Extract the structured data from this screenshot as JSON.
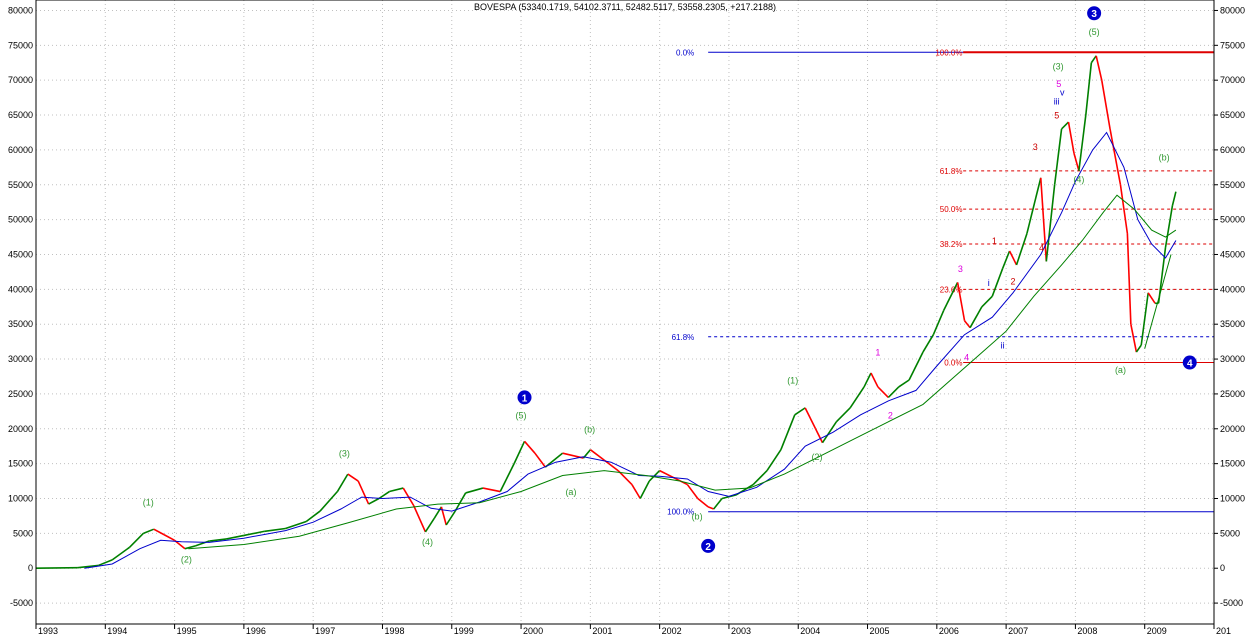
{
  "chart_data": {
    "type": "line",
    "title": "BOVESPA (53340.1719, 54102.3711, 52482.5117, 53558.2305, +217.2188)",
    "xlabel": "",
    "ylabel": "",
    "xlim": [
      1993.0,
      2010.0
    ],
    "ylim": [
      -8000,
      81500
    ],
    "y_ticks": [
      -5000,
      0,
      5000,
      10000,
      15000,
      20000,
      25000,
      30000,
      35000,
      40000,
      45000,
      50000,
      55000,
      60000,
      65000,
      70000,
      75000,
      80000
    ],
    "x_tick_labels": [
      "1993",
      "1994",
      "1995",
      "1996",
      "1997",
      "1998",
      "1999",
      "2000",
      "2001",
      "2002",
      "2003",
      "2004",
      "2005",
      "2006",
      "2007",
      "2008",
      "2009",
      "201"
    ],
    "grid": true,
    "colors": {
      "price_up": "#008000",
      "price_down": "#ff0000",
      "ma_short": "#0000cc",
      "ma_long": "#008000",
      "fib_major": "#0000cc",
      "fib_minor": "#dd0000",
      "wave_green": "#339933",
      "wave_magenta": "#dd00dd",
      "wave_red": "#cc0000",
      "wave_blue": "#0000cc",
      "grid": "#c0c0c0"
    },
    "series": [
      {
        "role": "price",
        "values": [
          [
            1993.0,
            0
          ],
          [
            1993.6,
            80
          ],
          [
            1993.9,
            400
          ],
          [
            1994.1,
            1200
          ],
          [
            1994.35,
            3000
          ],
          [
            1994.55,
            5000
          ],
          [
            1994.7,
            5600
          ],
          [
            1994.85,
            4800
          ],
          [
            1995.0,
            4000
          ],
          [
            1995.15,
            2800
          ],
          [
            1995.3,
            3200
          ],
          [
            1995.5,
            3900
          ],
          [
            1995.75,
            4200
          ],
          [
            1996.0,
            4700
          ],
          [
            1996.3,
            5300
          ],
          [
            1996.6,
            5700
          ],
          [
            1996.9,
            6700
          ],
          [
            1997.1,
            8200
          ],
          [
            1997.35,
            11000
          ],
          [
            1997.5,
            13500
          ],
          [
            1997.65,
            12500
          ],
          [
            1997.8,
            9200
          ],
          [
            1997.95,
            10000
          ],
          [
            1998.1,
            11000
          ],
          [
            1998.3,
            11500
          ],
          [
            1998.45,
            9000
          ],
          [
            1998.62,
            5200
          ],
          [
            1998.75,
            7200
          ],
          [
            1998.85,
            8800
          ],
          [
            1998.92,
            6200
          ],
          [
            1999.05,
            8200
          ],
          [
            1999.2,
            10800
          ],
          [
            1999.45,
            11500
          ],
          [
            1999.7,
            11000
          ],
          [
            1999.9,
            15000
          ],
          [
            2000.05,
            18200
          ],
          [
            2000.2,
            16500
          ],
          [
            2000.35,
            14500
          ],
          [
            2000.6,
            16500
          ],
          [
            2000.9,
            15800
          ],
          [
            2001.0,
            17000
          ],
          [
            2001.2,
            15500
          ],
          [
            2001.4,
            14000
          ],
          [
            2001.6,
            12000
          ],
          [
            2001.72,
            10000
          ],
          [
            2001.85,
            12500
          ],
          [
            2002.0,
            14000
          ],
          [
            2002.2,
            13000
          ],
          [
            2002.4,
            12000
          ],
          [
            2002.55,
            10000
          ],
          [
            2002.7,
            8800
          ],
          [
            2002.78,
            8500
          ],
          [
            2002.9,
            10000
          ],
          [
            2003.1,
            10500
          ],
          [
            2003.35,
            12000
          ],
          [
            2003.55,
            14000
          ],
          [
            2003.75,
            17000
          ],
          [
            2003.95,
            22000
          ],
          [
            2004.1,
            23000
          ],
          [
            2004.25,
            20000
          ],
          [
            2004.35,
            18000
          ],
          [
            2004.55,
            21000
          ],
          [
            2004.75,
            23000
          ],
          [
            2004.95,
            26000
          ],
          [
            2005.05,
            28000
          ],
          [
            2005.15,
            26000
          ],
          [
            2005.3,
            24500
          ],
          [
            2005.45,
            26000
          ],
          [
            2005.6,
            27000
          ],
          [
            2005.8,
            31000
          ],
          [
            2005.95,
            33500
          ],
          [
            2006.1,
            37000
          ],
          [
            2006.3,
            41000
          ],
          [
            2006.4,
            35500
          ],
          [
            2006.48,
            34500
          ],
          [
            2006.65,
            37500
          ],
          [
            2006.8,
            39000
          ],
          [
            2006.95,
            43000
          ],
          [
            2007.05,
            45500
          ],
          [
            2007.15,
            43500
          ],
          [
            2007.3,
            48000
          ],
          [
            2007.5,
            56000
          ],
          [
            2007.58,
            44000
          ],
          [
            2007.7,
            55000
          ],
          [
            2007.8,
            63000
          ],
          [
            2007.9,
            64000
          ],
          [
            2007.98,
            59500
          ],
          [
            2008.05,
            57000
          ],
          [
            2008.15,
            65000
          ],
          [
            2008.23,
            72500
          ],
          [
            2008.3,
            73500
          ],
          [
            2008.38,
            70000
          ],
          [
            2008.5,
            63000
          ],
          [
            2008.65,
            55000
          ],
          [
            2008.75,
            48000
          ],
          [
            2008.8,
            35000
          ],
          [
            2008.88,
            31000
          ],
          [
            2008.95,
            32000
          ],
          [
            2009.05,
            39500
          ],
          [
            2009.15,
            38000
          ],
          [
            2009.2,
            38000
          ],
          [
            2009.3,
            46000
          ],
          [
            2009.4,
            52000
          ],
          [
            2009.45,
            54000
          ]
        ]
      },
      {
        "role": "moving-average-short",
        "values": [
          [
            1993.7,
            0
          ],
          [
            1994.1,
            600
          ],
          [
            1994.5,
            2800
          ],
          [
            1994.8,
            4000
          ],
          [
            1995.1,
            3800
          ],
          [
            1995.5,
            3700
          ],
          [
            1996.0,
            4300
          ],
          [
            1996.6,
            5400
          ],
          [
            1997.0,
            6600
          ],
          [
            1997.4,
            8500
          ],
          [
            1997.7,
            10200
          ],
          [
            1998.0,
            10000
          ],
          [
            1998.4,
            10200
          ],
          [
            1998.7,
            8600
          ],
          [
            1999.0,
            8200
          ],
          [
            1999.4,
            9500
          ],
          [
            1999.8,
            11000
          ],
          [
            2000.1,
            13500
          ],
          [
            2000.5,
            15200
          ],
          [
            2000.9,
            16000
          ],
          [
            2001.3,
            15200
          ],
          [
            2001.7,
            13300
          ],
          [
            2002.0,
            13200
          ],
          [
            2002.4,
            12800
          ],
          [
            2002.7,
            11000
          ],
          [
            2003.0,
            10300
          ],
          [
            2003.4,
            11600
          ],
          [
            2003.8,
            14200
          ],
          [
            2004.1,
            17500
          ],
          [
            2004.5,
            19500
          ],
          [
            2004.9,
            22000
          ],
          [
            2005.3,
            24000
          ],
          [
            2005.7,
            25500
          ],
          [
            2006.0,
            29000
          ],
          [
            2006.4,
            33500
          ],
          [
            2006.8,
            36000
          ],
          [
            2007.1,
            39500
          ],
          [
            2007.5,
            45000
          ],
          [
            2007.8,
            51000
          ],
          [
            2008.0,
            55500
          ],
          [
            2008.25,
            60000
          ],
          [
            2008.45,
            62500
          ],
          [
            2008.7,
            57500
          ],
          [
            2008.9,
            50000
          ],
          [
            2009.1,
            46500
          ],
          [
            2009.3,
            44500
          ],
          [
            2009.45,
            47000
          ]
        ]
      },
      {
        "role": "moving-average-long",
        "values": [
          [
            1995.2,
            2800
          ],
          [
            1996.0,
            3400
          ],
          [
            1996.8,
            4600
          ],
          [
            1997.5,
            6500
          ],
          [
            1998.2,
            8500
          ],
          [
            1998.8,
            9200
          ],
          [
            1999.4,
            9400
          ],
          [
            2000.0,
            11000
          ],
          [
            2000.6,
            13300
          ],
          [
            2001.2,
            14000
          ],
          [
            2001.8,
            13300
          ],
          [
            2002.3,
            12500
          ],
          [
            2002.8,
            11200
          ],
          [
            2003.3,
            11500
          ],
          [
            2003.8,
            13500
          ],
          [
            2004.3,
            16000
          ],
          [
            2004.8,
            18500
          ],
          [
            2005.3,
            21000
          ],
          [
            2005.8,
            23500
          ],
          [
            2006.2,
            27000
          ],
          [
            2006.6,
            30500
          ],
          [
            2007.0,
            34000
          ],
          [
            2007.4,
            39000
          ],
          [
            2007.8,
            43500
          ],
          [
            2008.1,
            47000
          ],
          [
            2008.4,
            51000
          ],
          [
            2008.6,
            53500
          ],
          [
            2008.85,
            51500
          ],
          [
            2009.1,
            48500
          ],
          [
            2009.3,
            47500
          ],
          [
            2009.45,
            48500
          ]
        ]
      },
      {
        "role": "trend-channel-2009",
        "values": [
          [
            2009.0,
            31500
          ],
          [
            2009.38,
            45000
          ]
        ]
      }
    ],
    "fib_major": {
      "color": "#0000cc",
      "levels": [
        {
          "pct": "0.0%",
          "value": 74000
        },
        {
          "pct": "61.8%",
          "value": 33200
        },
        {
          "pct": "100.0%",
          "value": 8100
        }
      ]
    },
    "fib_minor": {
      "color": "#dd0000",
      "levels": [
        {
          "pct": "100.0%",
          "value": 74000
        },
        {
          "pct": "61.8%",
          "value": 57000
        },
        {
          "pct": "50.0%",
          "value": 51500
        },
        {
          "pct": "38.2%",
          "value": 46500
        },
        {
          "pct": "23.6%",
          "value": 40000
        },
        {
          "pct": "0.0%",
          "value": 29500
        }
      ]
    },
    "wave_labels": [
      {
        "text": "(1)",
        "x": 1994.62,
        "y": 9000,
        "color": "#339933"
      },
      {
        "text": "(2)",
        "x": 1995.17,
        "y": 800,
        "color": "#339933"
      },
      {
        "text": "(3)",
        "x": 1997.45,
        "y": 16000,
        "color": "#339933"
      },
      {
        "text": "(4)",
        "x": 1998.65,
        "y": 3300,
        "color": "#339933"
      },
      {
        "text": "(5)",
        "x": 2000.0,
        "y": 21500,
        "color": "#339933"
      },
      {
        "text": "(b)",
        "x": 2000.99,
        "y": 19500,
        "color": "#339933"
      },
      {
        "text": "(a)",
        "x": 2000.72,
        "y": 10500,
        "color": "#339933"
      },
      {
        "text": "(b)",
        "x": 2002.54,
        "y": 7000,
        "color": "#339933"
      },
      {
        "text": "(1)",
        "x": 2003.92,
        "y": 26500,
        "color": "#339933"
      },
      {
        "text": "(2)",
        "x": 2004.27,
        "y": 15500,
        "color": "#339933"
      },
      {
        "text": "(3)",
        "x": 2007.75,
        "y": 71500,
        "color": "#339933"
      },
      {
        "text": "(4)",
        "x": 2008.05,
        "y": 55300,
        "color": "#339933"
      },
      {
        "text": "(5)",
        "x": 2008.27,
        "y": 76500,
        "color": "#339933"
      },
      {
        "text": "(b)",
        "x": 2009.28,
        "y": 58500,
        "color": "#339933"
      },
      {
        "text": "(a)",
        "x": 2008.65,
        "y": 28000,
        "color": "#339933"
      },
      {
        "text": "1",
        "x": 2005.15,
        "y": 30500,
        "color": "#dd00dd"
      },
      {
        "text": "2",
        "x": 2005.33,
        "y": 21500,
        "color": "#dd00dd"
      },
      {
        "text": "3",
        "x": 2006.34,
        "y": 42500,
        "color": "#dd00dd"
      },
      {
        "text": "4",
        "x": 2006.43,
        "y": 29800,
        "color": "#dd00dd"
      },
      {
        "text": "5",
        "x": 2007.76,
        "y": 69000,
        "color": "#dd00dd"
      },
      {
        "text": "i",
        "x": 2006.75,
        "y": 40500,
        "color": "#0000cc"
      },
      {
        "text": "ii",
        "x": 2006.95,
        "y": 31500,
        "color": "#0000cc"
      },
      {
        "text": "iii",
        "x": 2007.73,
        "y": 66500,
        "color": "#0000cc"
      },
      {
        "text": "v",
        "x": 2007.81,
        "y": 67800,
        "color": "#0000cc"
      },
      {
        "text": "3",
        "x": 2007.42,
        "y": 60000,
        "color": "#cc0000"
      },
      {
        "text": "4",
        "x": 2007.51,
        "y": 45500,
        "color": "#cc0000"
      },
      {
        "text": "5",
        "x": 2007.73,
        "y": 64500,
        "color": "#cc0000"
      },
      {
        "text": "1",
        "x": 2006.83,
        "y": 46500,
        "color": "#cc0000"
      },
      {
        "text": "2",
        "x": 2007.1,
        "y": 40700,
        "color": "#cc0000"
      }
    ],
    "circled_labels": [
      {
        "text": "1",
        "x": 2000.05,
        "y": 24500
      },
      {
        "text": "2",
        "x": 2002.7,
        "y": 3200
      },
      {
        "text": "3",
        "x": 2008.27,
        "y": 79600
      },
      {
        "text": "4",
        "x": 2009.65,
        "y": 29500
      }
    ]
  }
}
